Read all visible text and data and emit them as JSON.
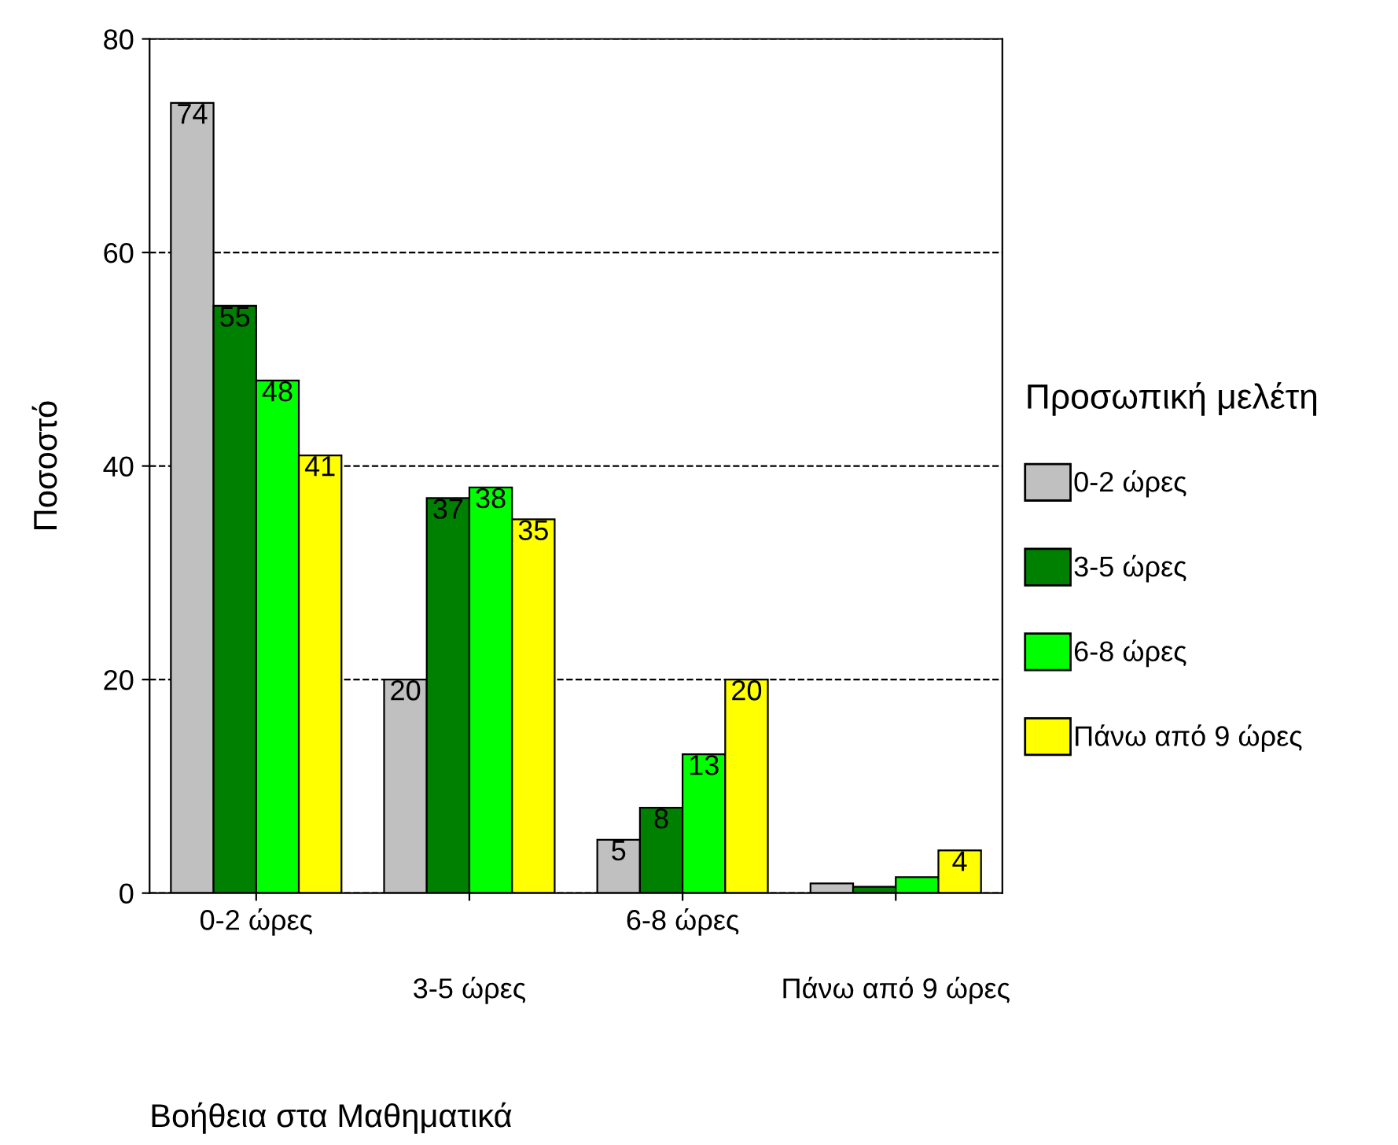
{
  "chart_data": {
    "type": "bar",
    "categories": [
      "0-2 ώρες",
      "3-5 ώρες",
      "6-8 ώρες",
      "Πάνω από 9 ώρες"
    ],
    "series": [
      {
        "name": "0-2 ώρες",
        "color": "#c0c0c0",
        "values": [
          74,
          20,
          5,
          0.9
        ],
        "value_labels": [
          "74",
          "20",
          "5",
          null
        ]
      },
      {
        "name": "3-5 ώρες",
        "color": "#008000",
        "values": [
          55,
          37,
          8,
          0.6
        ],
        "value_labels": [
          "55",
          "37",
          "8",
          null
        ]
      },
      {
        "name": "6-8 ώρες",
        "color": "#00ff00",
        "values": [
          48,
          38,
          13,
          1.5
        ],
        "value_labels": [
          "48",
          "38",
          "13",
          null
        ]
      },
      {
        "name": "Πάνω από 9 ώρες",
        "color": "#ffff00",
        "values": [
          41,
          35,
          20,
          4
        ],
        "value_labels": [
          "41",
          "35",
          "20",
          "4"
        ]
      }
    ],
    "xlabel": "Βοήθεια στα Μαθηματικά",
    "ylabel": "Ποσοστό",
    "legend_title": "Προσωπική μελέτη",
    "ylim": [
      0,
      80
    ],
    "yticks": [
      0,
      20,
      40,
      60,
      80
    ],
    "grid": "y",
    "legend": "right"
  }
}
